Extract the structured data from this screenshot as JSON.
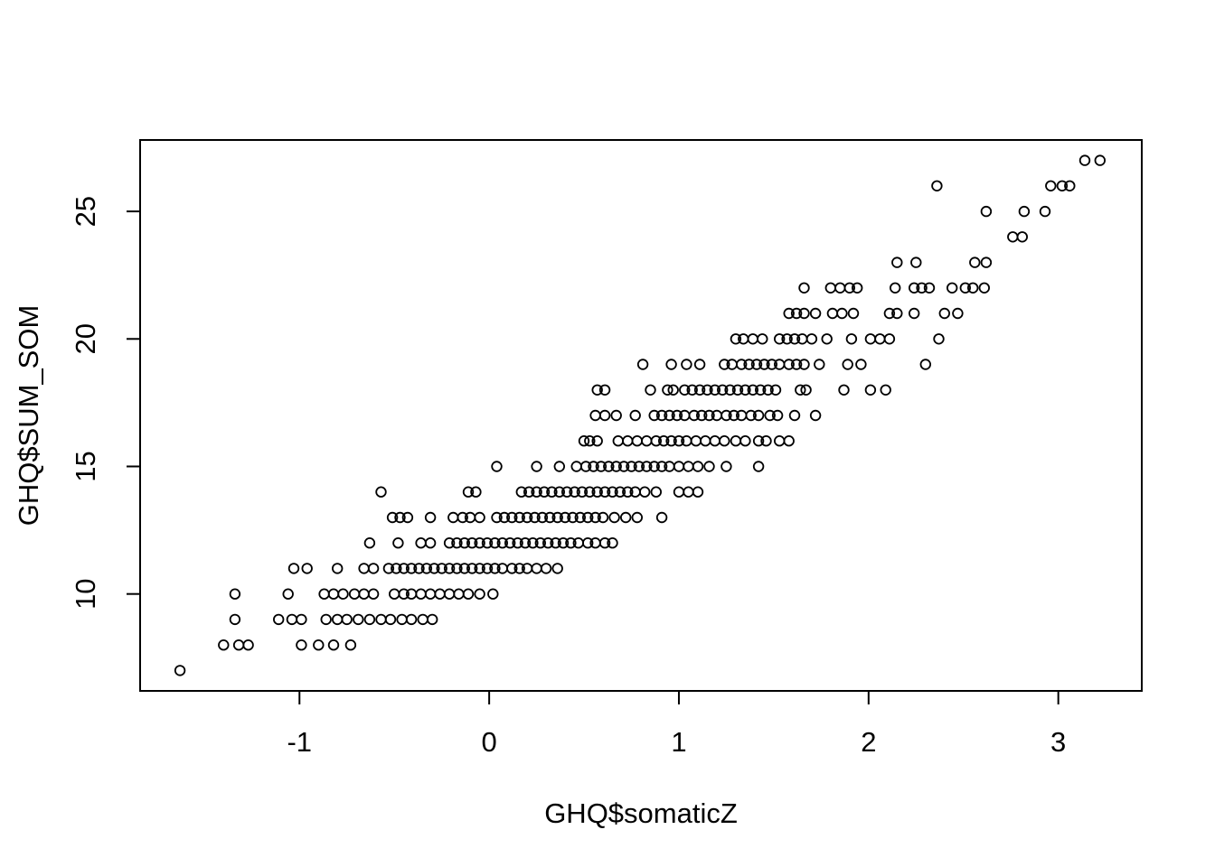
{
  "chart_data": {
    "type": "scatter",
    "title": "",
    "xlabel": "GHQ$somaticZ",
    "ylabel": "GHQ$SUM_SOM",
    "x_ticks": [
      -1,
      0,
      1,
      2,
      3
    ],
    "y_ticks": [
      10,
      15,
      20,
      25
    ],
    "xlim": [
      -1.84,
      3.44
    ],
    "ylim": [
      6.2,
      27.8
    ],
    "marker": "open-circle",
    "marker_color": "#000000",
    "background_color": "#ffffff",
    "frame": "box",
    "grid": "off",
    "legend": "none",
    "points_by_level": [
      {
        "sum_som": 7,
        "somatic_z": [
          -1.63
        ]
      },
      {
        "sum_som": 8,
        "somatic_z": [
          -1.4,
          -1.32,
          -1.27,
          -0.99,
          -0.9,
          -0.82,
          -0.73
        ]
      },
      {
        "sum_som": 9,
        "somatic_z": [
          -1.34,
          -1.11,
          -1.04,
          -0.99,
          -0.86,
          -0.8,
          -0.75,
          -0.69,
          -0.63,
          -0.57,
          -0.52,
          -0.46,
          -0.41,
          -0.35,
          -0.3
        ]
      },
      {
        "sum_som": 10,
        "somatic_z": [
          -1.34,
          -1.06,
          -0.87,
          -0.82,
          -0.77,
          -0.71,
          -0.66,
          -0.61,
          -0.5,
          -0.45,
          -0.41,
          -0.36,
          -0.31,
          -0.26,
          -0.21,
          -0.16,
          -0.11,
          -0.05,
          0.02
        ]
      },
      {
        "sum_som": 11,
        "somatic_z": [
          -1.03,
          -0.96,
          -0.8,
          -0.66,
          -0.61,
          -0.53,
          -0.49,
          -0.45,
          -0.41,
          -0.37,
          -0.33,
          -0.29,
          -0.25,
          -0.21,
          -0.17,
          -0.13,
          -0.09,
          -0.05,
          -0.01,
          0.03,
          0.07,
          0.12,
          0.16,
          0.2,
          0.25,
          0.3,
          0.36
        ]
      },
      {
        "sum_som": 12,
        "somatic_z": [
          -0.63,
          -0.48,
          -0.36,
          -0.31,
          -0.21,
          -0.17,
          -0.13,
          -0.09,
          -0.05,
          -0.01,
          0.03,
          0.07,
          0.11,
          0.15,
          0.19,
          0.23,
          0.27,
          0.31,
          0.35,
          0.39,
          0.43,
          0.47,
          0.52,
          0.56,
          0.61,
          0.65
        ]
      },
      {
        "sum_som": 13,
        "somatic_z": [
          -0.51,
          -0.47,
          -0.43,
          -0.31,
          -0.19,
          -0.14,
          -0.1,
          -0.05,
          0.04,
          0.08,
          0.12,
          0.16,
          0.2,
          0.24,
          0.28,
          0.32,
          0.36,
          0.4,
          0.44,
          0.48,
          0.52,
          0.56,
          0.6,
          0.66,
          0.72,
          0.78,
          0.91
        ]
      },
      {
        "sum_som": 14,
        "somatic_z": [
          -0.57,
          -0.11,
          -0.07,
          0.17,
          0.21,
          0.25,
          0.29,
          0.33,
          0.37,
          0.41,
          0.45,
          0.49,
          0.53,
          0.57,
          0.61,
          0.65,
          0.69,
          0.73,
          0.77,
          0.82,
          0.88,
          1.0,
          1.05,
          1.1
        ]
      },
      {
        "sum_som": 15,
        "somatic_z": [
          0.04,
          0.25,
          0.37,
          0.46,
          0.51,
          0.55,
          0.59,
          0.63,
          0.67,
          0.71,
          0.75,
          0.79,
          0.83,
          0.87,
          0.91,
          0.95,
          1.0,
          1.05,
          1.1,
          1.16,
          1.25,
          1.42
        ]
      },
      {
        "sum_som": 16,
        "somatic_z": [
          0.5,
          0.53,
          0.57,
          0.68,
          0.73,
          0.78,
          0.83,
          0.88,
          0.92,
          0.96,
          1.0,
          1.04,
          1.09,
          1.14,
          1.19,
          1.24,
          1.3,
          1.35,
          1.42,
          1.46,
          1.53,
          1.58
        ]
      },
      {
        "sum_som": 17,
        "somatic_z": [
          0.56,
          0.61,
          0.67,
          0.77,
          0.87,
          0.91,
          0.95,
          0.99,
          1.03,
          1.08,
          1.12,
          1.16,
          1.2,
          1.25,
          1.29,
          1.33,
          1.38,
          1.42,
          1.48,
          1.52,
          1.61,
          1.72
        ]
      },
      {
        "sum_som": 18,
        "somatic_z": [
          0.57,
          0.61,
          0.85,
          0.94,
          0.97,
          1.03,
          1.07,
          1.11,
          1.15,
          1.19,
          1.23,
          1.27,
          1.31,
          1.35,
          1.39,
          1.43,
          1.47,
          1.51,
          1.64,
          1.67,
          1.87,
          2.01,
          2.09
        ]
      },
      {
        "sum_som": 19,
        "somatic_z": [
          0.81,
          0.96,
          1.04,
          1.11,
          1.24,
          1.28,
          1.33,
          1.37,
          1.41,
          1.45,
          1.49,
          1.53,
          1.58,
          1.62,
          1.66,
          1.74,
          1.89,
          1.96,
          2.3
        ]
      },
      {
        "sum_som": 20,
        "somatic_z": [
          1.3,
          1.34,
          1.39,
          1.44,
          1.53,
          1.57,
          1.61,
          1.65,
          1.7,
          1.78,
          1.91,
          2.01,
          2.06,
          2.11,
          2.37
        ]
      },
      {
        "sum_som": 21,
        "somatic_z": [
          1.58,
          1.62,
          1.66,
          1.72,
          1.81,
          1.86,
          1.92,
          2.11,
          2.15,
          2.24,
          2.4,
          2.47
        ]
      },
      {
        "sum_som": 22,
        "somatic_z": [
          1.66,
          1.8,
          1.85,
          1.9,
          1.94,
          2.14,
          2.24,
          2.28,
          2.32,
          2.44,
          2.51,
          2.55,
          2.61
        ]
      },
      {
        "sum_som": 23,
        "somatic_z": [
          2.15,
          2.25,
          2.56,
          2.62
        ]
      },
      {
        "sum_som": 24,
        "somatic_z": [
          2.76,
          2.81
        ]
      },
      {
        "sum_som": 25,
        "somatic_z": [
          2.62,
          2.82,
          2.93
        ]
      },
      {
        "sum_som": 26,
        "somatic_z": [
          2.36,
          2.96,
          3.02,
          3.06
        ]
      },
      {
        "sum_som": 27,
        "somatic_z": [
          3.14,
          3.22
        ]
      }
    ]
  }
}
